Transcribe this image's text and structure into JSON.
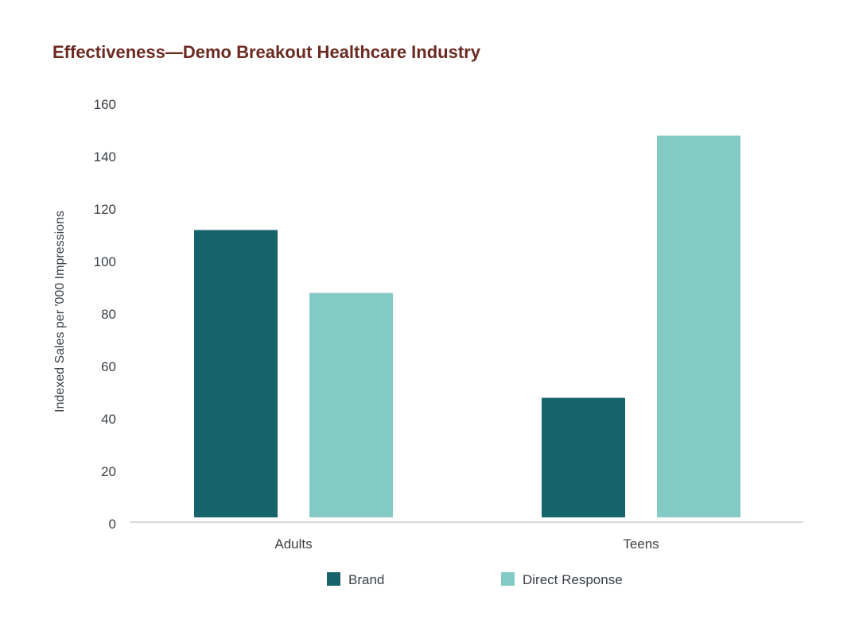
{
  "chart_data": {
    "type": "bar",
    "title": "Effectiveness—Demo Breakout Healthcare Industry",
    "xlabel": "",
    "ylabel": "Indexed Sales per '000 Impressions",
    "categories": [
      "Adults",
      "Teens"
    ],
    "series": [
      {
        "name": "Brand",
        "color": "#17636b",
        "values": [
          112,
          48
        ]
      },
      {
        "name": "Direct Response",
        "color": "#84cac4",
        "values": [
          88,
          148
        ]
      }
    ],
    "ylim": [
      0,
      160
    ],
    "yticks": [
      0,
      20,
      40,
      60,
      80,
      100,
      120,
      140,
      160
    ],
    "grid": false,
    "legend_position": "bottom-center"
  }
}
